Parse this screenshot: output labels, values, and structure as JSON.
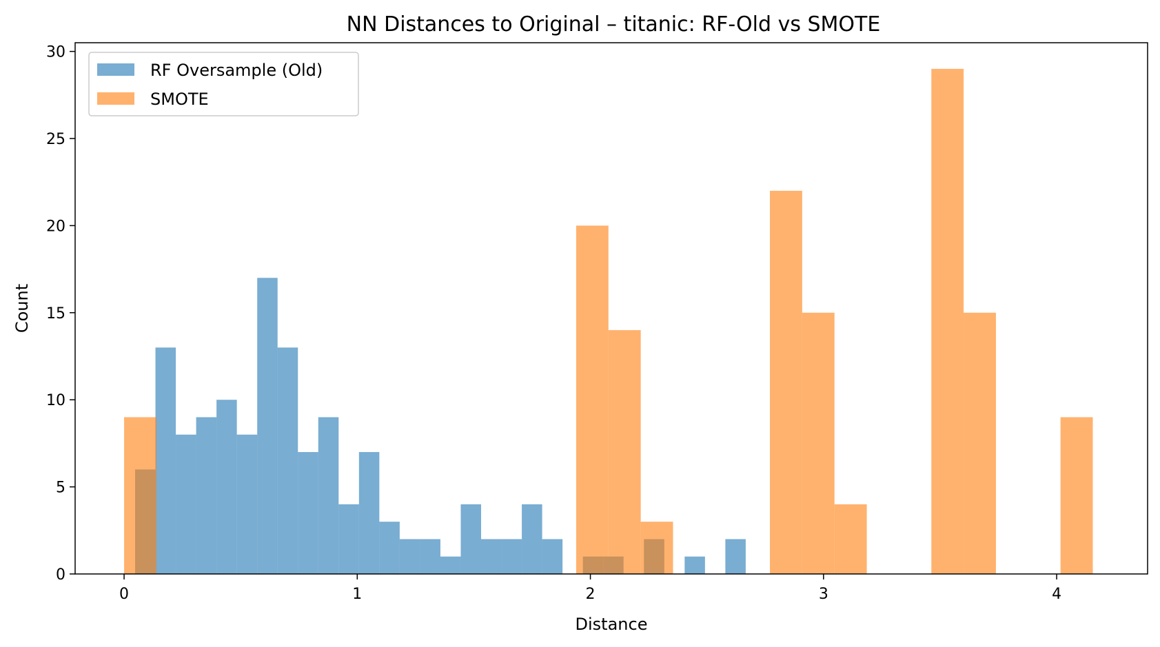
{
  "chart_data": {
    "type": "bar",
    "subtype": "overlaid-histogram",
    "title": "NN Distances to Original – titanic: RF-Old vs SMOTE",
    "xlabel": "Distance",
    "ylabel": "Count",
    "xlim": [
      -0.21,
      4.39
    ],
    "ylim": [
      0,
      30.5
    ],
    "xticks": [
      0,
      1,
      2,
      3,
      4
    ],
    "yticks": [
      0,
      5,
      10,
      15,
      20,
      25,
      30
    ],
    "grid": false,
    "legend_position": "top-left",
    "series": [
      {
        "name": "RF Oversample (Old)",
        "color": "#1f77b4",
        "opacity": 0.6,
        "bin_width": 0.0873,
        "bins": [
          [
            0.0472,
            6
          ],
          [
            0.1345,
            13
          ],
          [
            0.2218,
            8
          ],
          [
            0.3091,
            9
          ],
          [
            0.3964,
            10
          ],
          [
            0.4837,
            8
          ],
          [
            0.571,
            17
          ],
          [
            0.6583,
            13
          ],
          [
            0.7456,
            7
          ],
          [
            0.8329,
            9
          ],
          [
            0.9202,
            4
          ],
          [
            1.0075,
            7
          ],
          [
            1.0948,
            3
          ],
          [
            1.1821,
            2
          ],
          [
            1.2694,
            2
          ],
          [
            1.3567,
            1
          ],
          [
            1.444,
            4
          ],
          [
            1.5313,
            2
          ],
          [
            1.6186,
            2
          ],
          [
            1.7059,
            4
          ],
          [
            1.7932,
            2
          ],
          [
            1.8805,
            0
          ],
          [
            1.9678,
            1
          ],
          [
            2.0551,
            1
          ],
          [
            2.1424,
            0
          ],
          [
            2.2297,
            2
          ],
          [
            2.317,
            0
          ],
          [
            2.4043,
            1
          ],
          [
            2.4916,
            0
          ],
          [
            2.5789,
            2
          ]
        ]
      },
      {
        "name": "SMOTE",
        "color": "#ff7f0e",
        "opacity": 0.6,
        "bin_width": 0.1385,
        "bins": [
          [
            0.0,
            9
          ],
          [
            0.1385,
            0
          ],
          [
            0.277,
            0
          ],
          [
            0.4155,
            0
          ],
          [
            0.554,
            0
          ],
          [
            0.6925,
            0
          ],
          [
            0.831,
            0
          ],
          [
            0.9695,
            0
          ],
          [
            1.108,
            0
          ],
          [
            1.2465,
            0
          ],
          [
            1.385,
            0
          ],
          [
            1.5235,
            0
          ],
          [
            1.662,
            0
          ],
          [
            1.8005,
            0
          ],
          [
            1.939,
            20
          ],
          [
            2.0775,
            14
          ],
          [
            2.216,
            3
          ],
          [
            2.3545,
            0
          ],
          [
            2.493,
            0
          ],
          [
            2.6315,
            0
          ],
          [
            2.77,
            22
          ],
          [
            2.9085,
            15
          ],
          [
            3.047,
            4
          ],
          [
            3.1855,
            0
          ],
          [
            3.324,
            0
          ],
          [
            3.4625,
            29
          ],
          [
            3.601,
            15
          ],
          [
            3.7395,
            0
          ],
          [
            3.878,
            0
          ],
          [
            4.0165,
            9
          ]
        ]
      }
    ]
  }
}
